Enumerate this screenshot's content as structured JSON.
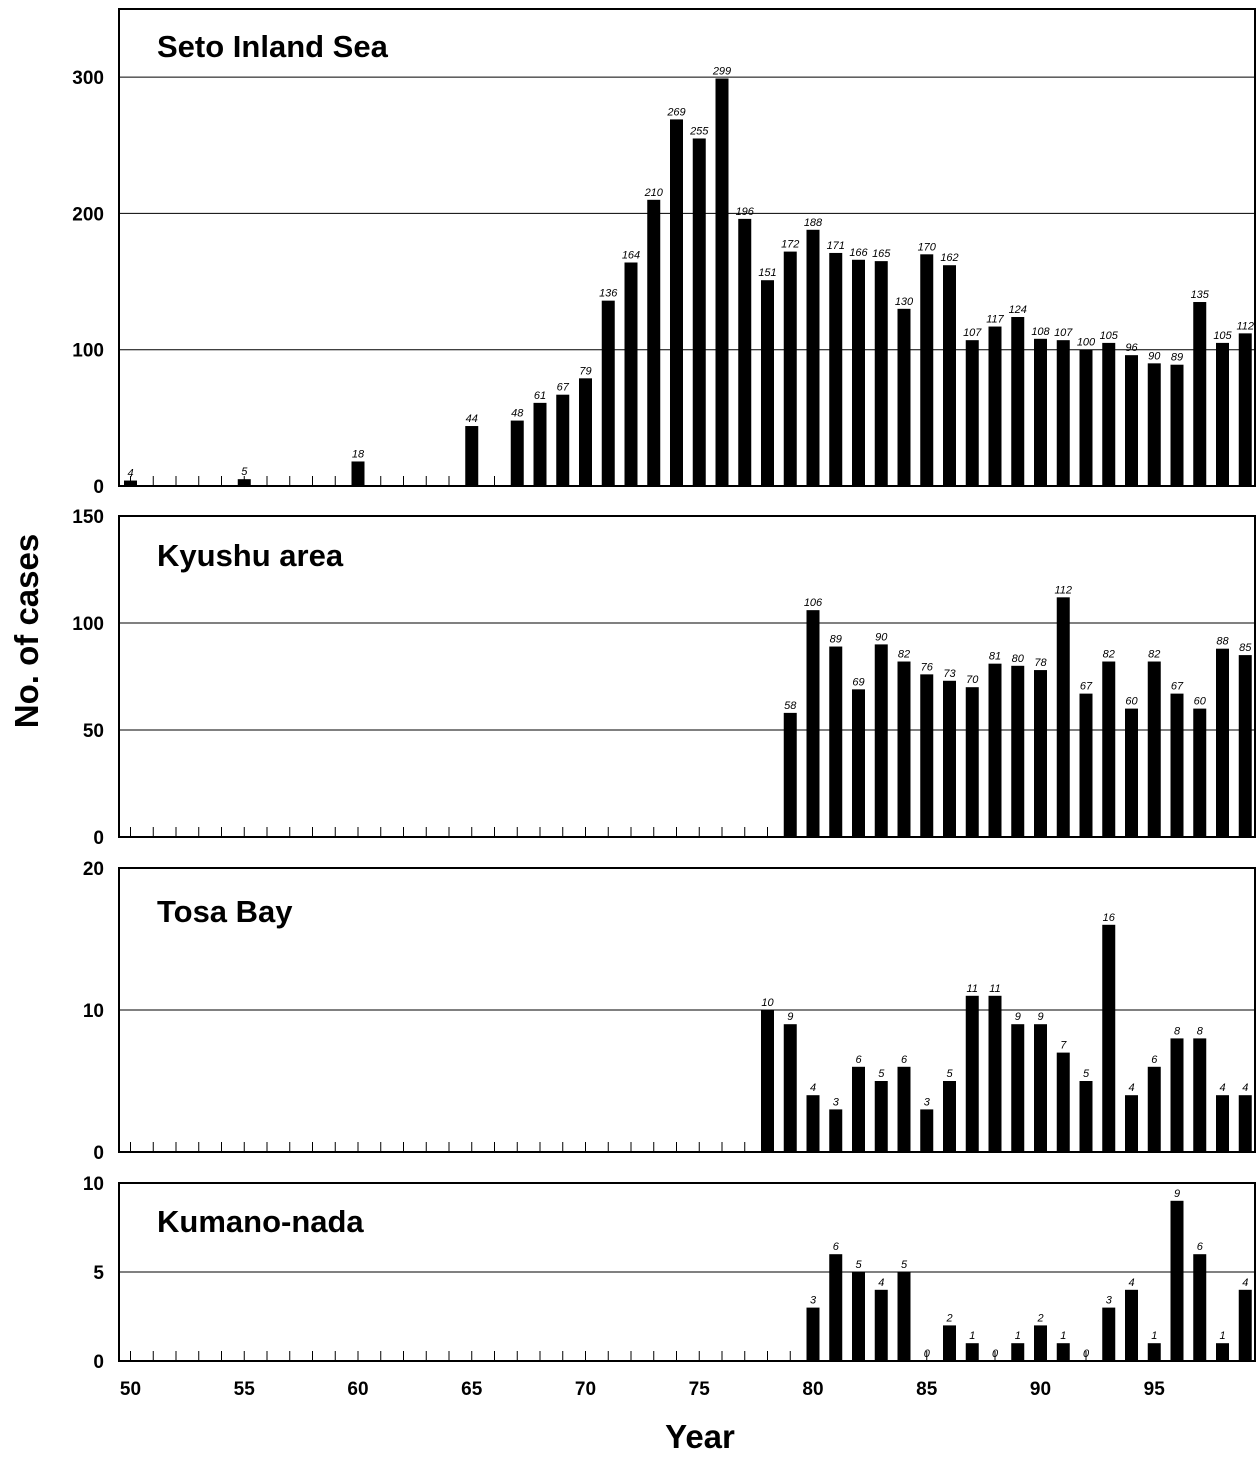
{
  "xlabel": "Year",
  "ylabel": "No. of cases",
  "x_tick_labels": [
    "50",
    "55",
    "60",
    "65",
    "70",
    "75",
    "80",
    "85",
    "90",
    "95"
  ],
  "chart_data": [
    {
      "type": "bar",
      "title": "Seto Inland Sea",
      "ylim": [
        0,
        350
      ],
      "yticks": [
        0,
        100,
        200,
        300
      ],
      "x": [
        50,
        55,
        60,
        65,
        67,
        68,
        69,
        70,
        71,
        72,
        73,
        74,
        75,
        76,
        77,
        78,
        79,
        80,
        81,
        82,
        83,
        84,
        85,
        86,
        87,
        88,
        89,
        90,
        91,
        92,
        93,
        94,
        95,
        96,
        97,
        98,
        99
      ],
      "values": [
        4,
        5,
        18,
        44,
        48,
        61,
        67,
        79,
        136,
        164,
        210,
        269,
        255,
        299,
        196,
        151,
        172,
        188,
        171,
        166,
        165,
        130,
        170,
        162,
        107,
        117,
        124,
        108,
        107,
        100,
        105,
        96,
        90,
        89,
        135,
        105,
        112
      ],
      "grid": true
    },
    {
      "type": "bar",
      "title": "Kyushu area",
      "ylim": [
        0,
        150
      ],
      "yticks": [
        0,
        50,
        100,
        150
      ],
      "x": [
        79,
        80,
        81,
        82,
        83,
        84,
        85,
        86,
        87,
        88,
        89,
        90,
        91,
        92,
        93,
        94,
        95,
        96,
        97,
        98,
        99
      ],
      "values": [
        58,
        106,
        89,
        69,
        90,
        82,
        76,
        73,
        70,
        81,
        80,
        78,
        112,
        67,
        82,
        60,
        82,
        67,
        60,
        88,
        85
      ],
      "grid": true
    },
    {
      "type": "bar",
      "title": "Tosa Bay",
      "ylim": [
        0,
        20
      ],
      "yticks": [
        0,
        10,
        20
      ],
      "x": [
        78,
        79,
        80,
        81,
        82,
        83,
        84,
        85,
        86,
        87,
        88,
        89,
        90,
        91,
        92,
        93,
        94,
        95,
        96,
        97,
        98,
        99
      ],
      "values": [
        10,
        9,
        4,
        3,
        6,
        5,
        6,
        3,
        5,
        11,
        11,
        9,
        9,
        7,
        5,
        16,
        4,
        6,
        8,
        8,
        4,
        4
      ],
      "grid": true
    },
    {
      "type": "bar",
      "title": "Kumano-nada",
      "ylim": [
        0,
        10
      ],
      "yticks": [
        0,
        5,
        10
      ],
      "x": [
        80,
        81,
        82,
        83,
        84,
        85,
        86,
        87,
        88,
        89,
        90,
        91,
        92,
        93,
        94,
        95,
        96,
        97,
        98,
        99
      ],
      "values": [
        3,
        6,
        5,
        4,
        5,
        0,
        2,
        1,
        0,
        1,
        2,
        1,
        0,
        3,
        4,
        1,
        9,
        6,
        1,
        4
      ],
      "grid": true
    }
  ]
}
